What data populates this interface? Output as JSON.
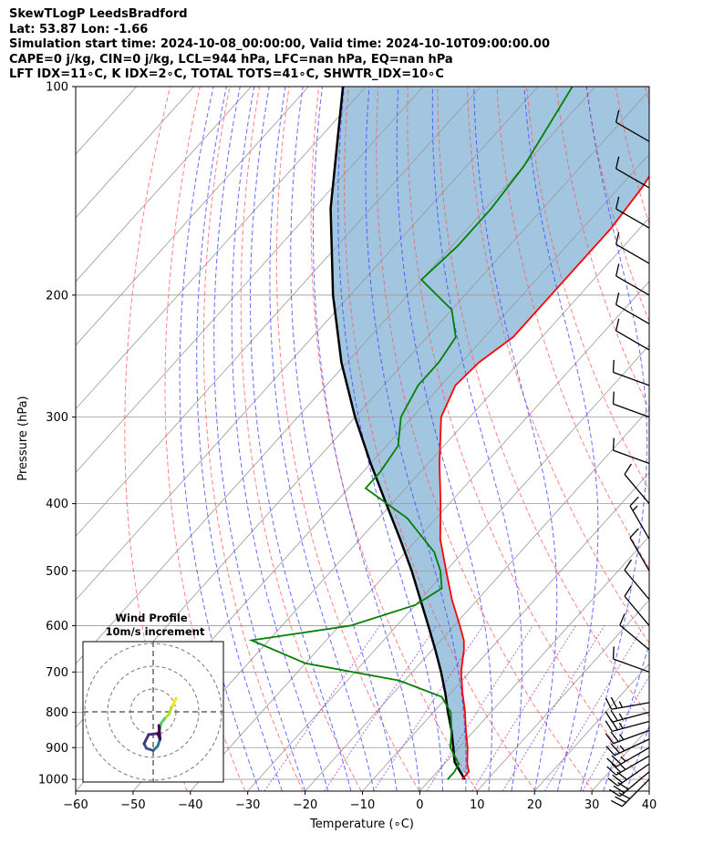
{
  "title": {
    "line1": "SkewTLogP LeedsBradford",
    "line2": "Lat: 53.87   Lon: -1.66",
    "line3": "Simulation start time: 2024-10-08_00:00:00, Valid time: 2024-10-10T09:00:00.00",
    "line4": "CAPE=0 j/kg, CIN=0 j/kg, LCL=944 hPa, LFC=nan hPa, EQ=nan hPa",
    "line5": "LFT IDX=11∘C, K IDX=2∘C, TOTAL TOTS=41∘C, SHWTR_IDX=10∘C"
  },
  "colors": {
    "temperature": "#ff0000",
    "dewpoint": "#008000",
    "parcel": "#000000",
    "cape_fill": "#a3c6e0",
    "dry_adiabat": "#ff5555",
    "moist_adiabat": "#4444ff",
    "mixing_ratio": "#9933cc",
    "isotherm": "#999999"
  },
  "chart_data": {
    "type": "skew-t",
    "xlabel": "Temperature (∘C)",
    "ylabel": "Pressure (hPa)",
    "xlim": [
      -60,
      40
    ],
    "ylim": [
      1040,
      100
    ],
    "x_ticks": [
      "−60",
      "−50",
      "−40",
      "−30",
      "−20",
      "−10",
      "0",
      "10",
      "20",
      "30",
      "40"
    ],
    "y_ticks": [
      "100",
      "200",
      "300",
      "400",
      "500",
      "600",
      "700",
      "800",
      "900",
      "1000"
    ],
    "temperature": [
      {
        "p": 1000,
        "t": 5.5
      },
      {
        "p": 975,
        "t": 5.5
      },
      {
        "p": 950,
        "t": 4.0
      },
      {
        "p": 900,
        "t": 1.5
      },
      {
        "p": 850,
        "t": -1.5
      },
      {
        "p": 800,
        "t": -4.5
      },
      {
        "p": 750,
        "t": -8.0
      },
      {
        "p": 700,
        "t": -11.5
      },
      {
        "p": 650,
        "t": -14.5
      },
      {
        "p": 630,
        "t": -16.0
      },
      {
        "p": 600,
        "t": -19.0
      },
      {
        "p": 550,
        "t": -24.5
      },
      {
        "p": 500,
        "t": -30.0
      },
      {
        "p": 450,
        "t": -36.0
      },
      {
        "p": 400,
        "t": -41.5
      },
      {
        "p": 350,
        "t": -48.0
      },
      {
        "p": 300,
        "t": -55.0
      },
      {
        "p": 270,
        "t": -57.5
      },
      {
        "p": 250,
        "t": -57.0
      },
      {
        "p": 230,
        "t": -55.0
      },
      {
        "p": 200,
        "t": -55.0
      },
      {
        "p": 180,
        "t": -55.0
      },
      {
        "p": 160,
        "t": -55.0
      },
      {
        "p": 140,
        "t": -56.0
      },
      {
        "p": 120,
        "t": -58.0
      },
      {
        "p": 110,
        "t": -58.5
      },
      {
        "p": 100,
        "t": -59.0
      }
    ],
    "dewpoint": [
      {
        "p": 1000,
        "t": 3.0
      },
      {
        "p": 975,
        "t": 3.0
      },
      {
        "p": 950,
        "t": 2.5
      },
      {
        "p": 900,
        "t": -1.5
      },
      {
        "p": 850,
        "t": -4.0
      },
      {
        "p": 800,
        "t": -7.0
      },
      {
        "p": 760,
        "t": -11.0
      },
      {
        "p": 720,
        "t": -21.0
      },
      {
        "p": 680,
        "t": -40.0
      },
      {
        "p": 630,
        "t": -53.0
      },
      {
        "p": 600,
        "t": -38.0
      },
      {
        "p": 560,
        "t": -30.0
      },
      {
        "p": 530,
        "t": -28.0
      },
      {
        "p": 500,
        "t": -31.0
      },
      {
        "p": 470,
        "t": -35.0
      },
      {
        "p": 420,
        "t": -45.0
      },
      {
        "p": 380,
        "t": -57.0
      },
      {
        "p": 360,
        "t": -57.0
      },
      {
        "p": 330,
        "t": -58.0
      },
      {
        "p": 300,
        "t": -62.0
      },
      {
        "p": 270,
        "t": -64.0
      },
      {
        "p": 250,
        "t": -64.0
      },
      {
        "p": 230,
        "t": -65.0
      },
      {
        "p": 210,
        "t": -70.0
      },
      {
        "p": 190,
        "t": -80.0
      },
      {
        "p": 170,
        "t": -79.0
      },
      {
        "p": 150,
        "t": -79.0
      },
      {
        "p": 130,
        "t": -80.0
      },
      {
        "p": 100,
        "t": -84.0
      }
    ],
    "parcel": [
      {
        "p": 1000,
        "t": 6.0
      },
      {
        "p": 975,
        "t": 4.0
      },
      {
        "p": 944,
        "t": 1.5
      },
      {
        "p": 900,
        "t": -1.0
      },
      {
        "p": 850,
        "t": -4.0
      },
      {
        "p": 800,
        "t": -7.5
      },
      {
        "p": 750,
        "t": -11.0
      },
      {
        "p": 700,
        "t": -15.0
      },
      {
        "p": 650,
        "t": -19.5
      },
      {
        "p": 600,
        "t": -24.5
      },
      {
        "p": 550,
        "t": -30.0
      },
      {
        "p": 500,
        "t": -36.0
      },
      {
        "p": 450,
        "t": -43.0
      },
      {
        "p": 400,
        "t": -51.0
      },
      {
        "p": 350,
        "t": -60.0
      },
      {
        "p": 300,
        "t": -70.0
      },
      {
        "p": 250,
        "t": -81.0
      },
      {
        "p": 200,
        "t": -93.0
      },
      {
        "p": 150,
        "t": -107.0
      },
      {
        "p": 100,
        "t": -124.0
      }
    ],
    "wind_barbs": [
      {
        "p": 1000,
        "dir": 225,
        "speed_kt": 30
      },
      {
        "p": 975,
        "dir": 230,
        "speed_kt": 30
      },
      {
        "p": 950,
        "dir": 235,
        "speed_kt": 30
      },
      {
        "p": 925,
        "dir": 240,
        "speed_kt": 25
      },
      {
        "p": 900,
        "dir": 240,
        "speed_kt": 25
      },
      {
        "p": 875,
        "dir": 245,
        "speed_kt": 25
      },
      {
        "p": 850,
        "dir": 250,
        "speed_kt": 25
      },
      {
        "p": 825,
        "dir": 255,
        "speed_kt": 25
      },
      {
        "p": 800,
        "dir": 255,
        "speed_kt": 25
      },
      {
        "p": 775,
        "dir": 260,
        "speed_kt": 25
      },
      {
        "p": 700,
        "dir": 290,
        "speed_kt": 10
      },
      {
        "p": 650,
        "dir": 310,
        "speed_kt": 10
      },
      {
        "p": 600,
        "dir": 320,
        "speed_kt": 10
      },
      {
        "p": 550,
        "dir": 320,
        "speed_kt": 10
      },
      {
        "p": 500,
        "dir": 330,
        "speed_kt": 10
      },
      {
        "p": 450,
        "dir": 330,
        "speed_kt": 15
      },
      {
        "p": 400,
        "dir": 320,
        "speed_kt": 10
      },
      {
        "p": 350,
        "dir": 290,
        "speed_kt": 10
      },
      {
        "p": 300,
        "dir": 290,
        "speed_kt": 10
      },
      {
        "p": 270,
        "dir": 290,
        "speed_kt": 10
      },
      {
        "p": 240,
        "dir": 300,
        "speed_kt": 10
      },
      {
        "p": 220,
        "dir": 300,
        "speed_kt": 10
      },
      {
        "p": 200,
        "dir": 300,
        "speed_kt": 10
      },
      {
        "p": 180,
        "dir": 300,
        "speed_kt": 10
      },
      {
        "p": 160,
        "dir": 300,
        "speed_kt": 10
      },
      {
        "p": 140,
        "dir": 300,
        "speed_kt": 10
      },
      {
        "p": 120,
        "dir": 300,
        "speed_kt": 10
      }
    ],
    "hodograph": {
      "title_line1": "Wind Profile",
      "title_line2": "10m/s increment",
      "ring_increment_ms": 10,
      "rings": 3,
      "points": [
        {
          "u": 10.0,
          "v": 6.0
        },
        {
          "u": 9.0,
          "v": 3.5
        },
        {
          "u": 8.0,
          "v": 2.0
        },
        {
          "u": 7.0,
          "v": -1.0
        },
        {
          "u": 5.0,
          "v": -3.0
        },
        {
          "u": 3.5,
          "v": -5.0
        },
        {
          "u": 3.0,
          "v": -7.0
        },
        {
          "u": 2.5,
          "v": -9.0
        },
        {
          "u": 3.0,
          "v": -12.0
        },
        {
          "u": 2.0,
          "v": -15.0
        },
        {
          "u": 0.0,
          "v": -17.0
        },
        {
          "u": -3.0,
          "v": -16.0
        },
        {
          "u": -4.0,
          "v": -14.0
        },
        {
          "u": -2.0,
          "v": -10.0
        },
        {
          "u": 2.0,
          "v": -9.5
        },
        {
          "u": 3.0,
          "v": -12.0
        },
        {
          "u": 2.5,
          "v": -6.0
        }
      ]
    }
  }
}
